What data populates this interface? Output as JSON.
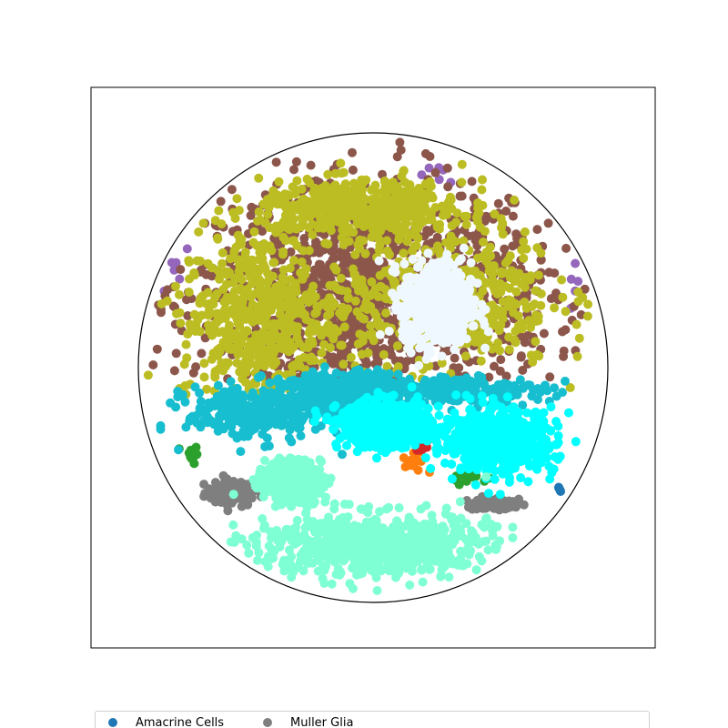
{
  "chart_data": {
    "type": "scatter",
    "title": "",
    "xlabel": "",
    "ylabel": "",
    "grid": false,
    "axes_visible": false,
    "boundary": "circle",
    "legend_placement": "bottom",
    "series": [
      {
        "name": "Amacrine Cells",
        "color": "#1f77b4",
        "clusters": [
          [
            0.82,
            -0.54,
            0.02,
            0.02
          ]
        ],
        "count": 4
      },
      {
        "name": "Muller Glia",
        "color": "#7f7f7f",
        "clusters": [
          [
            -0.62,
            -0.55,
            0.12,
            0.06
          ],
          [
            0.55,
            -0.6,
            0.12,
            0.03
          ]
        ],
        "count": 160
      },
      {
        "name": "",
        "color": "#2ca02c",
        "clusters": [
          [
            -0.8,
            -0.38,
            0.03,
            0.04
          ],
          [
            0.42,
            -0.48,
            0.08,
            0.03
          ]
        ],
        "count": 30
      },
      {
        "name": "",
        "color": "#ff7f0e",
        "clusters": [
          [
            0.18,
            -0.42,
            0.05,
            0.04
          ]
        ],
        "count": 15
      },
      {
        "name": "",
        "color": "#d62728",
        "clusters": [
          [
            0.2,
            -0.34,
            0.04,
            0.05
          ]
        ],
        "count": 10
      },
      {
        "name": "",
        "color": "#9467bd",
        "clusters": [
          [
            -0.9,
            0.55,
            0.06,
            0.2
          ],
          [
            0.9,
            0.6,
            0.06,
            0.2
          ],
          [
            0.3,
            0.85,
            0.12,
            0.04
          ]
        ],
        "count": 16
      },
      {
        "name": "",
        "color": "#8c564b",
        "clusters": [
          [
            0.0,
            0.32,
            0.78,
            0.52
          ]
        ],
        "count": 1200,
        "ymin": -0.05
      },
      {
        "name": "",
        "color": "#bcbd22",
        "clusters": [
          [
            -0.5,
            0.22,
            0.35,
            0.38
          ],
          [
            0.3,
            0.32,
            0.5,
            0.32
          ],
          [
            -0.05,
            0.7,
            0.45,
            0.12
          ]
        ],
        "count": 1500,
        "ymin": -0.12
      },
      {
        "name": "",
        "color": "#17becf",
        "clusters": [
          [
            -0.52,
            -0.2,
            0.3,
            0.12
          ],
          [
            -0.15,
            -0.12,
            0.25,
            0.1
          ],
          [
            0.3,
            -0.1,
            0.45,
            0.06
          ]
        ],
        "count": 900
      },
      {
        "name": "",
        "color": "#00ffff",
        "clusters": [
          [
            0.55,
            -0.32,
            0.25,
            0.14
          ],
          [
            0.05,
            -0.25,
            0.2,
            0.1
          ]
        ],
        "count": 1100
      },
      {
        "name": "",
        "color": "#7fffd4",
        "clusters": [
          [
            0.0,
            -0.78,
            0.52,
            0.14
          ],
          [
            -0.35,
            -0.5,
            0.12,
            0.08
          ]
        ],
        "count": 1400
      },
      {
        "name": "",
        "color": "#f0f8ff",
        "clusters": [
          [
            0.28,
            0.28,
            0.15,
            0.18
          ]
        ],
        "count": 700
      }
    ],
    "legend": [
      {
        "label": "Amacrine Cells",
        "color": "#1f77b4"
      },
      {
        "label": "Muller Glia",
        "color": "#7f7f7f"
      }
    ]
  }
}
